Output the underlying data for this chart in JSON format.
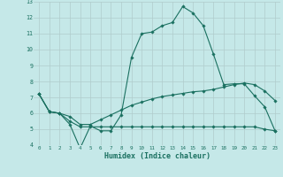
{
  "xlabel": "Humidex (Indice chaleur)",
  "background_color": "#c5e8e8",
  "grid_color": "#b0cccc",
  "line_color": "#1a7060",
  "xlim": [
    -0.5,
    23.5
  ],
  "ylim": [
    4,
    13
  ],
  "xticks": [
    0,
    1,
    2,
    3,
    4,
    5,
    6,
    7,
    8,
    9,
    10,
    11,
    12,
    13,
    14,
    15,
    16,
    17,
    18,
    19,
    20,
    21,
    22,
    23
  ],
  "yticks": [
    4,
    5,
    6,
    7,
    8,
    9,
    10,
    11,
    12,
    13
  ],
  "line1_y": [
    7.2,
    6.1,
    6.0,
    5.3,
    3.8,
    5.2,
    4.9,
    4.9,
    5.9,
    9.5,
    11.0,
    11.1,
    11.5,
    11.7,
    12.7,
    12.3,
    11.5,
    9.7,
    7.8,
    7.85,
    7.85,
    7.1,
    6.4,
    4.9
  ],
  "line2_y": [
    7.2,
    6.1,
    6.0,
    5.8,
    5.3,
    5.3,
    5.6,
    5.9,
    6.2,
    6.5,
    6.7,
    6.9,
    7.05,
    7.15,
    7.25,
    7.35,
    7.4,
    7.5,
    7.65,
    7.8,
    7.9,
    7.8,
    7.4,
    6.8
  ],
  "line3_y": [
    7.2,
    6.1,
    6.0,
    5.5,
    5.15,
    5.15,
    5.15,
    5.15,
    5.15,
    5.15,
    5.15,
    5.15,
    5.15,
    5.15,
    5.15,
    5.15,
    5.15,
    5.15,
    5.15,
    5.15,
    5.15,
    5.15,
    5.0,
    4.9
  ]
}
